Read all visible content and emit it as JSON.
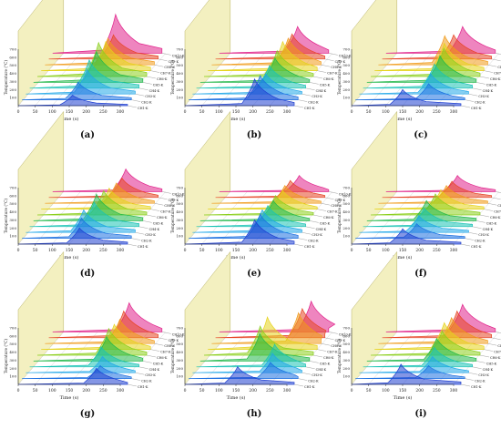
{
  "colors": {
    "wall": "#f3f0c0",
    "wall_edge": "#b9b36a",
    "grid": "#d6d6d6",
    "axis": "#333333",
    "layers": [
      "#1f3fd0",
      "#1b6fe0",
      "#21a7e8",
      "#19c3b5",
      "#22b84a",
      "#8ccf1e",
      "#e6d31c",
      "#f09a1a",
      "#e64525",
      "#e0208a"
    ]
  },
  "axes_text": {
    "xlabel": "Time (s)",
    "ylabel": "Temperature (°C)",
    "x_ticks": [
      "0",
      "50",
      "100",
      "150",
      "200",
      "250",
      "300"
    ],
    "y_ticks": [
      "100",
      "200",
      "300",
      "400",
      "500",
      "600",
      "700"
    ],
    "layer_labels": [
      "CH1-K",
      "CH2-K",
      "CH3-K",
      "CH4-K",
      "CH5-K",
      "CH6-K",
      "CH7-K",
      "CH8-K",
      "CH9-K",
      "CH10-K"
    ]
  },
  "chart_data": [
    {
      "type": "line",
      "label": "(a)",
      "xlabel": "Time (s)",
      "ylabel": "Temperature (°C)",
      "xlim": [
        0,
        300
      ],
      "ylim": [
        0,
        700
      ],
      "series": [
        {
          "peak_time": 160,
          "peak_temp": 130
        },
        {
          "peak_time": 165,
          "peak_temp": 220
        },
        {
          "peak_time": 180,
          "peak_temp": 300
        },
        {
          "peak_time": 175,
          "peak_temp": 350
        },
        {
          "peak_time": 185,
          "peak_temp": 380
        },
        {
          "peak_time": 180,
          "peak_temp": 420
        },
        {
          "peak_time": 190,
          "peak_temp": 360
        },
        {
          "peak_time": 185,
          "peak_temp": 330
        },
        {
          "peak_time": 190,
          "peak_temp": 300
        },
        {
          "peak_time": 185,
          "peak_temp": 480
        }
      ]
    },
    {
      "type": "line",
      "label": "(b)",
      "xlabel": "Time (s)",
      "ylabel": "Temperature (°C)",
      "xlim": [
        0,
        300
      ],
      "ylim": [
        0,
        700
      ],
      "series": [
        {
          "peak_time": 205,
          "peak_temp": 330
        },
        {
          "peak_time": 210,
          "peak_temp": 300
        },
        {
          "peak_time": 215,
          "peak_temp": 250
        },
        {
          "peak_time": 215,
          "peak_temp": 280
        },
        {
          "peak_time": 220,
          "peak_temp": 300
        },
        {
          "peak_time": 215,
          "peak_temp": 320
        },
        {
          "peak_time": 220,
          "peak_temp": 360
        },
        {
          "peak_time": 225,
          "peak_temp": 330
        },
        {
          "peak_time": 225,
          "peak_temp": 310
        },
        {
          "peak_time": 230,
          "peak_temp": 330
        }
      ]
    },
    {
      "type": "line",
      "label": "(c)",
      "xlabel": "Time (s)",
      "ylabel": "Temperature (°C)",
      "xlim": [
        0,
        300
      ],
      "ylim": [
        0,
        700
      ],
      "series": [
        {
          "peak_time": 150,
          "peak_temp": 200
        },
        {
          "peak_time": 215,
          "peak_temp": 200
        },
        {
          "peak_time": 210,
          "peak_temp": 250
        },
        {
          "peak_time": 210,
          "peak_temp": 300
        },
        {
          "peak_time": 215,
          "peak_temp": 330
        },
        {
          "peak_time": 215,
          "peak_temp": 350
        },
        {
          "peak_time": 205,
          "peak_temp": 340
        },
        {
          "peak_time": 195,
          "peak_temp": 360
        },
        {
          "peak_time": 210,
          "peak_temp": 300
        },
        {
          "peak_time": 225,
          "peak_temp": 330
        }
      ]
    },
    {
      "type": "line",
      "label": "(d)",
      "xlabel": "Time (s)",
      "ylabel": "Temperature (°C)",
      "xlim": [
        0,
        300
      ],
      "ylim": [
        0,
        700
      ],
      "series": [
        {
          "peak_time": 180,
          "peak_temp": 200
        },
        {
          "peak_time": 175,
          "peak_temp": 250
        },
        {
          "peak_time": 170,
          "peak_temp": 280
        },
        {
          "peak_time": 190,
          "peak_temp": 300
        },
        {
          "peak_time": 185,
          "peak_temp": 330
        },
        {
          "peak_time": 195,
          "peak_temp": 300
        },
        {
          "peak_time": 200,
          "peak_temp": 260
        },
        {
          "peak_time": 210,
          "peak_temp": 250
        },
        {
          "peak_time": 215,
          "peak_temp": 240
        },
        {
          "peak_time": 215,
          "peak_temp": 280
        }
      ]
    },
    {
      "type": "line",
      "label": "(e)",
      "xlabel": "Time (s)",
      "ylabel": "Temperature (°C)",
      "xlim": [
        0,
        300
      ],
      "ylim": [
        0,
        700
      ],
      "series": [
        {
          "peak_time": 205,
          "peak_temp": 300
        },
        {
          "peak_time": 210,
          "peak_temp": 300
        },
        {
          "peak_time": 205,
          "peak_temp": 280
        },
        {
          "peak_time": 210,
          "peak_temp": 260
        },
        {
          "peak_time": 215,
          "peak_temp": 250
        },
        {
          "peak_time": 210,
          "peak_temp": 240
        },
        {
          "peak_time": 220,
          "peak_temp": 230
        },
        {
          "peak_time": 215,
          "peak_temp": 220
        },
        {
          "peak_time": 220,
          "peak_temp": 210
        },
        {
          "peak_time": 235,
          "peak_temp": 200
        }
      ]
    },
    {
      "type": "line",
      "label": "(f)",
      "xlabel": "Time (s)",
      "ylabel": "Temperature (°C)",
      "xlim": [
        0,
        300
      ],
      "ylim": [
        0,
        700
      ],
      "series": [
        {
          "peak_time": 150,
          "peak_temp": 190
        },
        {
          "peak_time": 180,
          "peak_temp": 180
        },
        {
          "peak_time": 175,
          "peak_temp": 210
        },
        {
          "peak_time": 180,
          "peak_temp": 230
        },
        {
          "peak_time": 175,
          "peak_temp": 250
        },
        {
          "peak_time": 190,
          "peak_temp": 260
        },
        {
          "peak_time": 195,
          "peak_temp": 240
        },
        {
          "peak_time": 200,
          "peak_temp": 220
        },
        {
          "peak_time": 205,
          "peak_temp": 200
        },
        {
          "peak_time": 210,
          "peak_temp": 200
        }
      ]
    },
    {
      "type": "line",
      "label": "(g)",
      "xlabel": "Time (s)",
      "ylabel": "Temperature (°C)",
      "xlim": [
        0,
        300
      ],
      "ylim": [
        0,
        700
      ],
      "series": [
        {
          "peak_time": 230,
          "peak_temp": 200
        },
        {
          "peak_time": 230,
          "peak_temp": 160
        },
        {
          "peak_time": 225,
          "peak_temp": 200
        },
        {
          "peak_time": 210,
          "peak_temp": 250
        },
        {
          "peak_time": 215,
          "peak_temp": 300
        },
        {
          "peak_time": 210,
          "peak_temp": 330
        },
        {
          "peak_time": 215,
          "peak_temp": 310
        },
        {
          "peak_time": 220,
          "peak_temp": 300
        },
        {
          "peak_time": 220,
          "peak_temp": 330
        },
        {
          "peak_time": 225,
          "peak_temp": 360
        }
      ]
    },
    {
      "type": "line",
      "label": "(h)",
      "xlabel": "Time (s)",
      "ylabel": "Temperature (°C)",
      "xlim": [
        0,
        300
      ],
      "ylim": [
        0,
        700
      ],
      "series": [
        {
          "peak_time": 155,
          "peak_temp": 220
        },
        {
          "peak_time": 240,
          "peak_temp": 200
        },
        {
          "peak_time": 235,
          "peak_temp": 240
        },
        {
          "peak_time": 230,
          "peak_temp": 280
        },
        {
          "peak_time": 175,
          "peak_temp": 340
        },
        {
          "peak_time": 165,
          "peak_temp": 360
        },
        {
          "peak_time": 175,
          "peak_temp": 400
        },
        {
          "peak_time": 255,
          "peak_temp": 380
        },
        {
          "peak_time": 255,
          "peak_temp": 360
        },
        {
          "peak_time": 270,
          "peak_temp": 380
        }
      ]
    },
    {
      "type": "line",
      "label": "(i)",
      "xlabel": "Time (s)",
      "ylabel": "Temperature (°C)",
      "xlim": [
        0,
        300
      ],
      "ylim": [
        0,
        700
      ],
      "series": [
        {
          "peak_time": 145,
          "peak_temp": 250
        },
        {
          "peak_time": 215,
          "peak_temp": 160
        },
        {
          "peak_time": 215,
          "peak_temp": 200
        },
        {
          "peak_time": 210,
          "peak_temp": 240
        },
        {
          "peak_time": 205,
          "peak_temp": 280
        },
        {
          "peak_time": 210,
          "peak_temp": 300
        },
        {
          "peak_time": 205,
          "peak_temp": 330
        },
        {
          "peak_time": 215,
          "peak_temp": 320
        },
        {
          "peak_time": 220,
          "peak_temp": 330
        },
        {
          "peak_time": 225,
          "peak_temp": 340
        }
      ]
    }
  ]
}
